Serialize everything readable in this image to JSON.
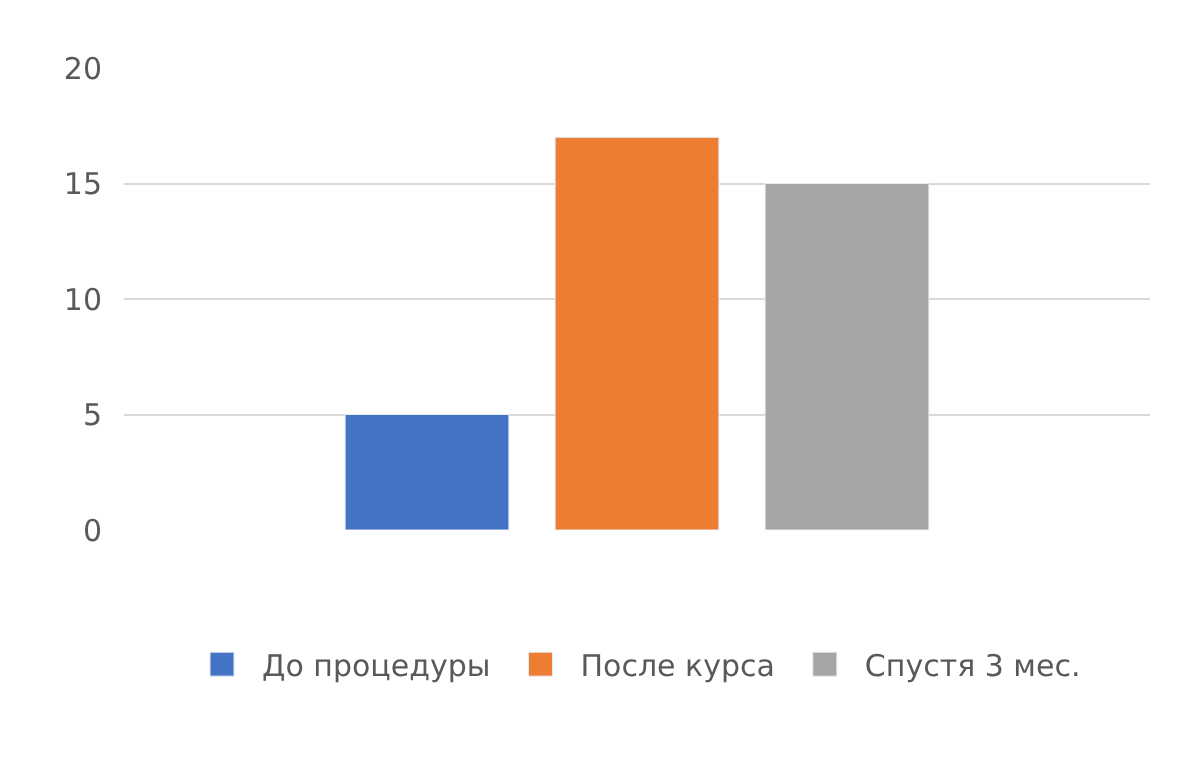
{
  "chart_data": {
    "type": "bar",
    "categories": [
      null
    ],
    "series": [
      {
        "name": "До процедуры",
        "color": "#4472c4",
        "values": [
          5
        ]
      },
      {
        "name": "После курса",
        "color": "#ed7d31",
        "values": [
          17
        ]
      },
      {
        "name": "Спустя 3 мес.",
        "color": "#a5a5a5",
        "values": [
          15
        ]
      }
    ],
    "ylim": [
      0,
      20
    ],
    "yticks": [
      0,
      5,
      10,
      15,
      20
    ],
    "grid": "y",
    "legend": "bottom",
    "tick_labels": "y"
  }
}
